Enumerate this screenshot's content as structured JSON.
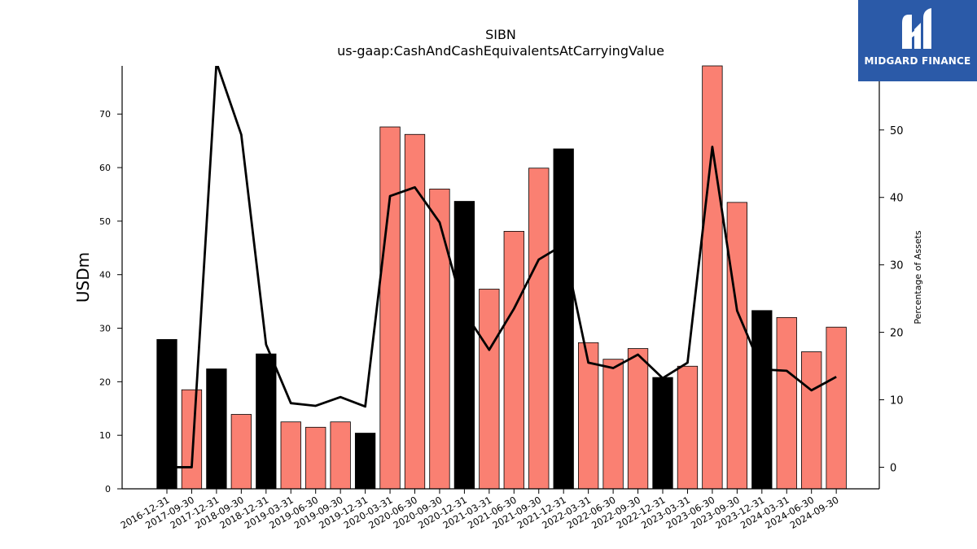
{
  "chart_data": {
    "type": "bar",
    "title": "SIBN",
    "subtitle": "us-gaap:CashAndCashEquivalentsAtCarryingValue",
    "ylabel": "USDm",
    "y2label": "Percentage of Assets",
    "ylim": [
      0,
      79
    ],
    "y2lim": [
      -3.2,
      59.5
    ],
    "yticks": [
      0,
      10,
      20,
      30,
      40,
      50,
      60,
      70
    ],
    "y2ticks": [
      0,
      10,
      20,
      30,
      40,
      50
    ],
    "categories": [
      "2016-12-31",
      "2017-09-30",
      "2017-12-31",
      "2018-09-30",
      "2018-12-31",
      "2019-03-31",
      "2019-06-30",
      "2019-09-30",
      "2019-12-31",
      "2020-03-31",
      "2020-06-30",
      "2020-09-30",
      "2020-12-31",
      "2021-03-31",
      "2021-06-30",
      "2021-09-30",
      "2021-12-31",
      "2022-03-31",
      "2022-06-30",
      "2022-09-30",
      "2022-12-31",
      "2023-03-31",
      "2023-06-30",
      "2023-09-30",
      "2023-12-31",
      "2024-03-31",
      "2024-06-30",
      "2024-09-30"
    ],
    "series": [
      {
        "kind": "bar",
        "values": [
          27.9,
          18.5,
          22.4,
          13.9,
          25.2,
          12.5,
          11.5,
          12.5,
          10.4,
          67.6,
          66.2,
          56.0,
          53.7,
          37.3,
          48.1,
          59.9,
          63.5,
          27.3,
          24.2,
          26.2,
          20.8,
          22.9,
          79.0,
          53.5,
          33.3,
          32.0,
          25.6,
          30.2
        ],
        "colors": [
          "#000000",
          "#fa8072",
          "#000000",
          "#fa8072",
          "#000000",
          "#fa8072",
          "#fa8072",
          "#fa8072",
          "#000000",
          "#fa8072",
          "#fa8072",
          "#fa8072",
          "#000000",
          "#fa8072",
          "#fa8072",
          "#fa8072",
          "#000000",
          "#fa8072",
          "#fa8072",
          "#fa8072",
          "#000000",
          "#fa8072",
          "#fa8072",
          "#fa8072",
          "#000000",
          "#fa8072",
          "#fa8072",
          "#fa8072"
        ]
      },
      {
        "kind": "line",
        "axis": "right",
        "color": "#000000",
        "values": [
          0.0,
          0.0,
          60.0,
          49.3,
          18.2,
          9.5,
          9.1,
          10.4,
          9.0,
          40.2,
          41.5,
          36.3,
          23.0,
          17.4,
          23.5,
          30.8,
          33.0,
          15.5,
          14.7,
          16.7,
          13.2,
          15.5,
          47.5,
          23.2,
          14.5,
          14.3,
          11.4,
          13.4
        ]
      }
    ],
    "grid": false,
    "legend": "none"
  },
  "logo": {
    "text": "MIDGARD FINANCE",
    "icon": "midgard-logo-icon",
    "bg": "#2b5aa8"
  }
}
